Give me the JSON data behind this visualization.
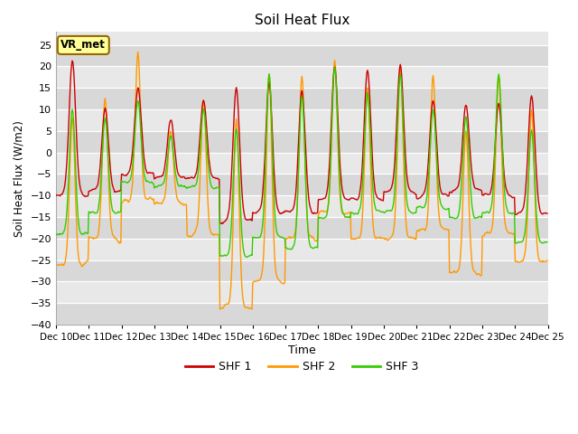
{
  "title": "Soil Heat Flux",
  "ylabel": "Soil Heat Flux (W/m2)",
  "xlabel": "Time",
  "ylim": [
    -40,
    28
  ],
  "yticks": [
    -40,
    -35,
    -30,
    -25,
    -20,
    -15,
    -10,
    -5,
    0,
    5,
    10,
    15,
    20,
    25
  ],
  "xlim_days": [
    10,
    25
  ],
  "xtick_labels": [
    "Dec 10",
    "Dec 11",
    "Dec 12",
    "Dec 13",
    "Dec 14",
    "Dec 15",
    "Dec 16",
    "Dec 17",
    "Dec 18",
    "Dec 19",
    "Dec 20",
    "Dec 21",
    "Dec 22",
    "Dec 23",
    "Dec 24",
    "Dec 25"
  ],
  "colors": {
    "SHF1": "#cc0000",
    "SHF2": "#ff9900",
    "SHF3": "#33cc00"
  },
  "legend_labels": [
    "SHF 1",
    "SHF 2",
    "SHF 3"
  ],
  "annotation_text": "VR_met",
  "bg_color": "#e8e8e8",
  "fig_bg": "#ffffff",
  "linewidth": 1.0,
  "band_colors": [
    "#d8d8d8",
    "#e8e8e8"
  ]
}
